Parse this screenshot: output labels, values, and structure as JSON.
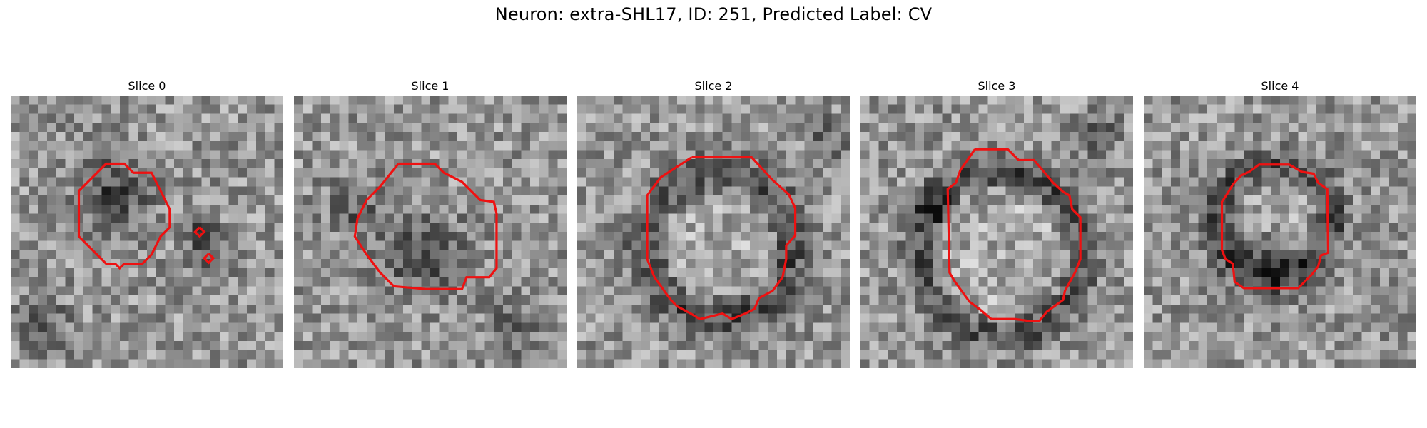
{
  "suptitle": "Neuron: extra-SHL17, ID: 251, Predicted Label: CV",
  "contour_color": "#ee1111",
  "panels": [
    {
      "title": "Slice 0",
      "dark_blob": [
        0.37,
        0.36,
        0.14,
        0.16
      ],
      "ring": null,
      "extra": [
        [
          0.7,
          0.5,
          0.07
        ],
        [
          0.72,
          0.6,
          0.08
        ],
        [
          0.12,
          0.85,
          0.1
        ]
      ]
    },
    {
      "title": "Slice 1",
      "dark_blob": [
        0.47,
        0.58,
        0.18,
        0.14
      ],
      "ring": null,
      "extra": [
        [
          0.22,
          0.4,
          0.1
        ],
        [
          0.8,
          0.85,
          0.1
        ]
      ]
    },
    {
      "title": "Slice 2",
      "dark_blob": null,
      "ring": [
        0.52,
        0.55,
        0.27,
        0.07
      ],
      "extra": [
        [
          0.92,
          0.15,
          0.08
        ]
      ]
    },
    {
      "title": "Slice 3",
      "dark_blob": null,
      "ring": [
        0.52,
        0.58,
        0.3,
        0.06
      ],
      "extra": [
        [
          0.25,
          0.4,
          0.08
        ],
        [
          0.88,
          0.15,
          0.08
        ]
      ]
    },
    {
      "title": "Slice 4",
      "dark_blob": [
        0.45,
        0.6,
        0.15,
        0.1
      ],
      "ring": [
        0.48,
        0.46,
        0.21,
        0.06
      ],
      "extra": []
    }
  ]
}
